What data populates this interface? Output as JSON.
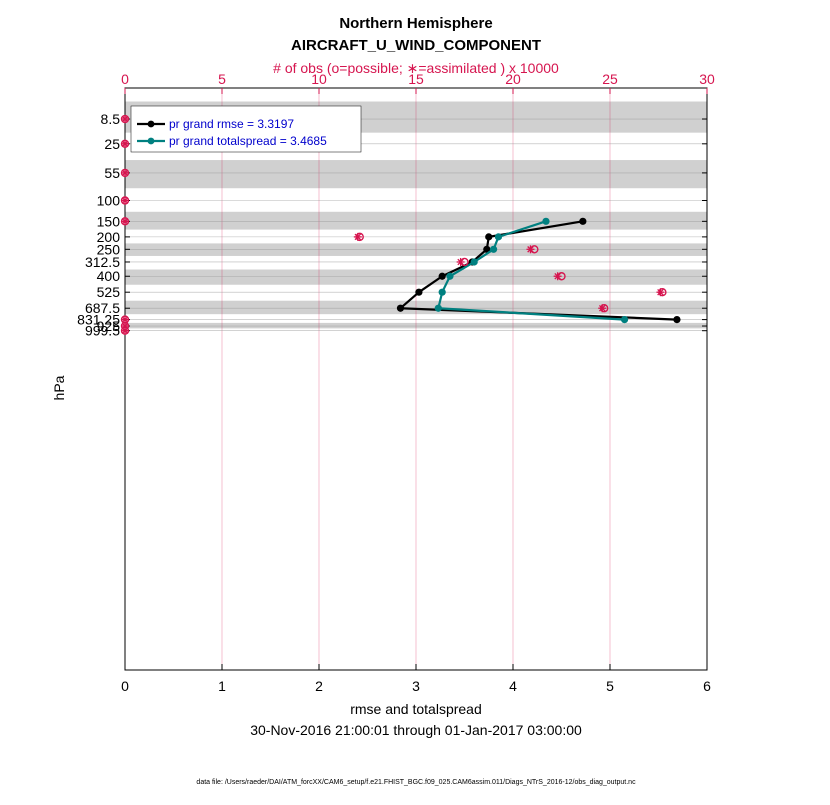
{
  "chart_data": {
    "type": "line",
    "title": "Northern Hemisphere",
    "subtitle": "AIRCRAFT_U_WIND_COMPONENT",
    "top_axis_label": "# of obs (o=possible; ∗=assimilated ) x 10000",
    "xlabel": "rmse and totalspread",
    "ylabel": "hPa",
    "date_range": "30-Nov-2016 21:00:01 through 01-Jan-2017 03:00:00",
    "footnote": "data file: /Users/raeder/DAI/ATM_forcXX/CAM6_setup/f.e21.FHIST_BGC.f09_025.CAM6assim.011/Diags_NTrS_2016-12/obs_diag_output.nc",
    "xlim": [
      0,
      6
    ],
    "xticks": [
      "0",
      "1",
      "2",
      "3",
      "4",
      "5",
      "6"
    ],
    "top_xlim": [
      0,
      30
    ],
    "top_xticks": [
      "0",
      "5",
      "10",
      "15",
      "20",
      "25",
      "30"
    ],
    "levels": [
      8.5,
      25,
      55,
      100,
      150,
      200,
      250,
      312.5,
      400,
      525,
      687.5,
      831.25,
      925,
      999.5
    ],
    "level_labels": [
      "8.5",
      "25",
      "55",
      "100",
      "150",
      "200",
      "250",
      "312.5",
      "400",
      "525",
      "687.5",
      "831.25",
      "925",
      "999.5"
    ],
    "series": [
      {
        "name": "pr grand rmse = 3.3197",
        "color": "#000000",
        "levels": [
          150,
          200,
          250,
          312.5,
          400,
          525,
          687.5,
          831.25
        ],
        "values": [
          4.72,
          3.75,
          3.73,
          3.58,
          3.27,
          3.03,
          2.84,
          5.69
        ]
      },
      {
        "name": "pr grand totalspread = 3.4685",
        "color": "#008080",
        "levels": [
          150,
          200,
          250,
          312.5,
          400,
          525,
          687.5,
          831.25
        ],
        "values": [
          4.34,
          3.85,
          3.8,
          3.6,
          3.35,
          3.27,
          3.23,
          5.15
        ]
      }
    ],
    "obs_counts": {
      "color": "#d6154f",
      "levels": [
        8.5,
        25,
        55,
        100,
        150,
        200,
        250,
        312.5,
        400,
        525,
        687.5,
        831.25,
        925,
        999.5
      ],
      "possible": [
        0,
        0,
        0,
        0,
        0,
        12.1,
        21.1,
        17.5,
        22.5,
        27.7,
        24.7,
        0,
        0,
        0
      ],
      "assimilated": [
        0,
        0,
        0,
        0,
        0,
        12.0,
        20.9,
        17.3,
        22.3,
        27.6,
        24.6,
        0,
        0,
        0
      ]
    }
  }
}
